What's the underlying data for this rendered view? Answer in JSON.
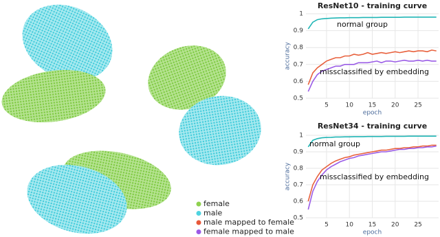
{
  "chart_data": [
    {
      "type": "line",
      "title": "ResNet10 - training curve",
      "xlabel": "epoch",
      "ylabel": "accuracy",
      "annotations": [
        "normal group",
        "missclassified by embedding"
      ],
      "x": [
        1,
        2,
        3,
        4,
        5,
        6,
        7,
        8,
        9,
        10,
        11,
        12,
        13,
        14,
        15,
        16,
        17,
        18,
        19,
        20,
        21,
        22,
        23,
        24,
        25,
        26,
        27,
        28,
        29
      ],
      "xlim": [
        0.5,
        29.5
      ],
      "xticks": [
        5,
        10,
        15,
        20,
        25
      ],
      "ylim": [
        0.5,
        1
      ],
      "yticks": [
        0.5,
        0.6,
        0.7,
        0.8,
        0.9,
        1
      ],
      "grid": true,
      "series": [
        {
          "color": "#1fb5b5",
          "values": [
            0.91,
            0.95,
            0.965,
            0.97,
            0.972,
            0.974,
            0.975,
            0.976,
            0.976,
            0.977,
            0.977,
            0.977,
            0.978,
            0.978,
            0.978,
            0.978,
            0.979,
            0.979,
            0.979,
            0.979,
            0.979,
            0.98,
            0.98,
            0.98,
            0.98,
            0.98,
            0.98,
            0.98,
            0.98
          ]
        },
        {
          "color": "#e8603c",
          "values": [
            0.58,
            0.65,
            0.68,
            0.7,
            0.72,
            0.73,
            0.74,
            0.74,
            0.75,
            0.75,
            0.76,
            0.755,
            0.76,
            0.77,
            0.76,
            0.765,
            0.77,
            0.765,
            0.77,
            0.775,
            0.77,
            0.775,
            0.78,
            0.775,
            0.78,
            0.78,
            0.775,
            0.785,
            0.78
          ]
        },
        {
          "color": "#9a5ce6",
          "values": [
            0.54,
            0.6,
            0.64,
            0.66,
            0.67,
            0.68,
            0.69,
            0.69,
            0.7,
            0.7,
            0.7,
            0.71,
            0.71,
            0.71,
            0.715,
            0.72,
            0.71,
            0.72,
            0.72,
            0.715,
            0.72,
            0.725,
            0.72,
            0.72,
            0.725,
            0.72,
            0.725,
            0.72,
            0.72
          ]
        }
      ]
    },
    {
      "type": "line",
      "title": "ResNet34  - training curve",
      "xlabel": "epoch",
      "ylabel": "accuracy",
      "annotations": [
        "normal group",
        "missclassified by embedding"
      ],
      "x": [
        1,
        2,
        3,
        4,
        5,
        6,
        7,
        8,
        9,
        10,
        11,
        12,
        13,
        14,
        15,
        16,
        17,
        18,
        19,
        20,
        21,
        22,
        23,
        24,
        25,
        26,
        27,
        28,
        29
      ],
      "xlim": [
        0.5,
        29.5
      ],
      "xticks": [
        5,
        10,
        15,
        20,
        25
      ],
      "ylim": [
        0.5,
        1
      ],
      "yticks": [
        0.5,
        0.6,
        0.7,
        0.8,
        0.9,
        1
      ],
      "grid": true,
      "series": [
        {
          "color": "#1fb5b5",
          "values": [
            0.93,
            0.97,
            0.98,
            0.985,
            0.987,
            0.988,
            0.99,
            0.99,
            0.991,
            0.991,
            0.992,
            0.992,
            0.992,
            0.993,
            0.993,
            0.993,
            0.993,
            0.994,
            0.994,
            0.994,
            0.994,
            0.994,
            0.995,
            0.995,
            0.995,
            0.995,
            0.995,
            0.995,
            0.995
          ]
        },
        {
          "color": "#e8603c",
          "values": [
            0.6,
            0.7,
            0.75,
            0.79,
            0.81,
            0.83,
            0.845,
            0.855,
            0.865,
            0.87,
            0.88,
            0.885,
            0.89,
            0.895,
            0.9,
            0.905,
            0.91,
            0.91,
            0.915,
            0.92,
            0.92,
            0.925,
            0.925,
            0.93,
            0.93,
            0.935,
            0.935,
            0.94,
            0.94
          ]
        },
        {
          "color": "#9a5ce6",
          "values": [
            0.55,
            0.66,
            0.72,
            0.76,
            0.79,
            0.81,
            0.825,
            0.84,
            0.85,
            0.86,
            0.865,
            0.875,
            0.88,
            0.885,
            0.89,
            0.895,
            0.9,
            0.9,
            0.905,
            0.91,
            0.915,
            0.915,
            0.92,
            0.92,
            0.925,
            0.925,
            0.93,
            0.93,
            0.935
          ]
        }
      ]
    }
  ],
  "scatter_legend": {
    "items": [
      {
        "label": "female",
        "color": "#8fd14f"
      },
      {
        "label": "male",
        "color": "#4fd3e0"
      },
      {
        "label": "male mapped to female",
        "color": "#e8583a"
      },
      {
        "label": "female mapped to male",
        "color": "#9b59e6"
      }
    ]
  }
}
